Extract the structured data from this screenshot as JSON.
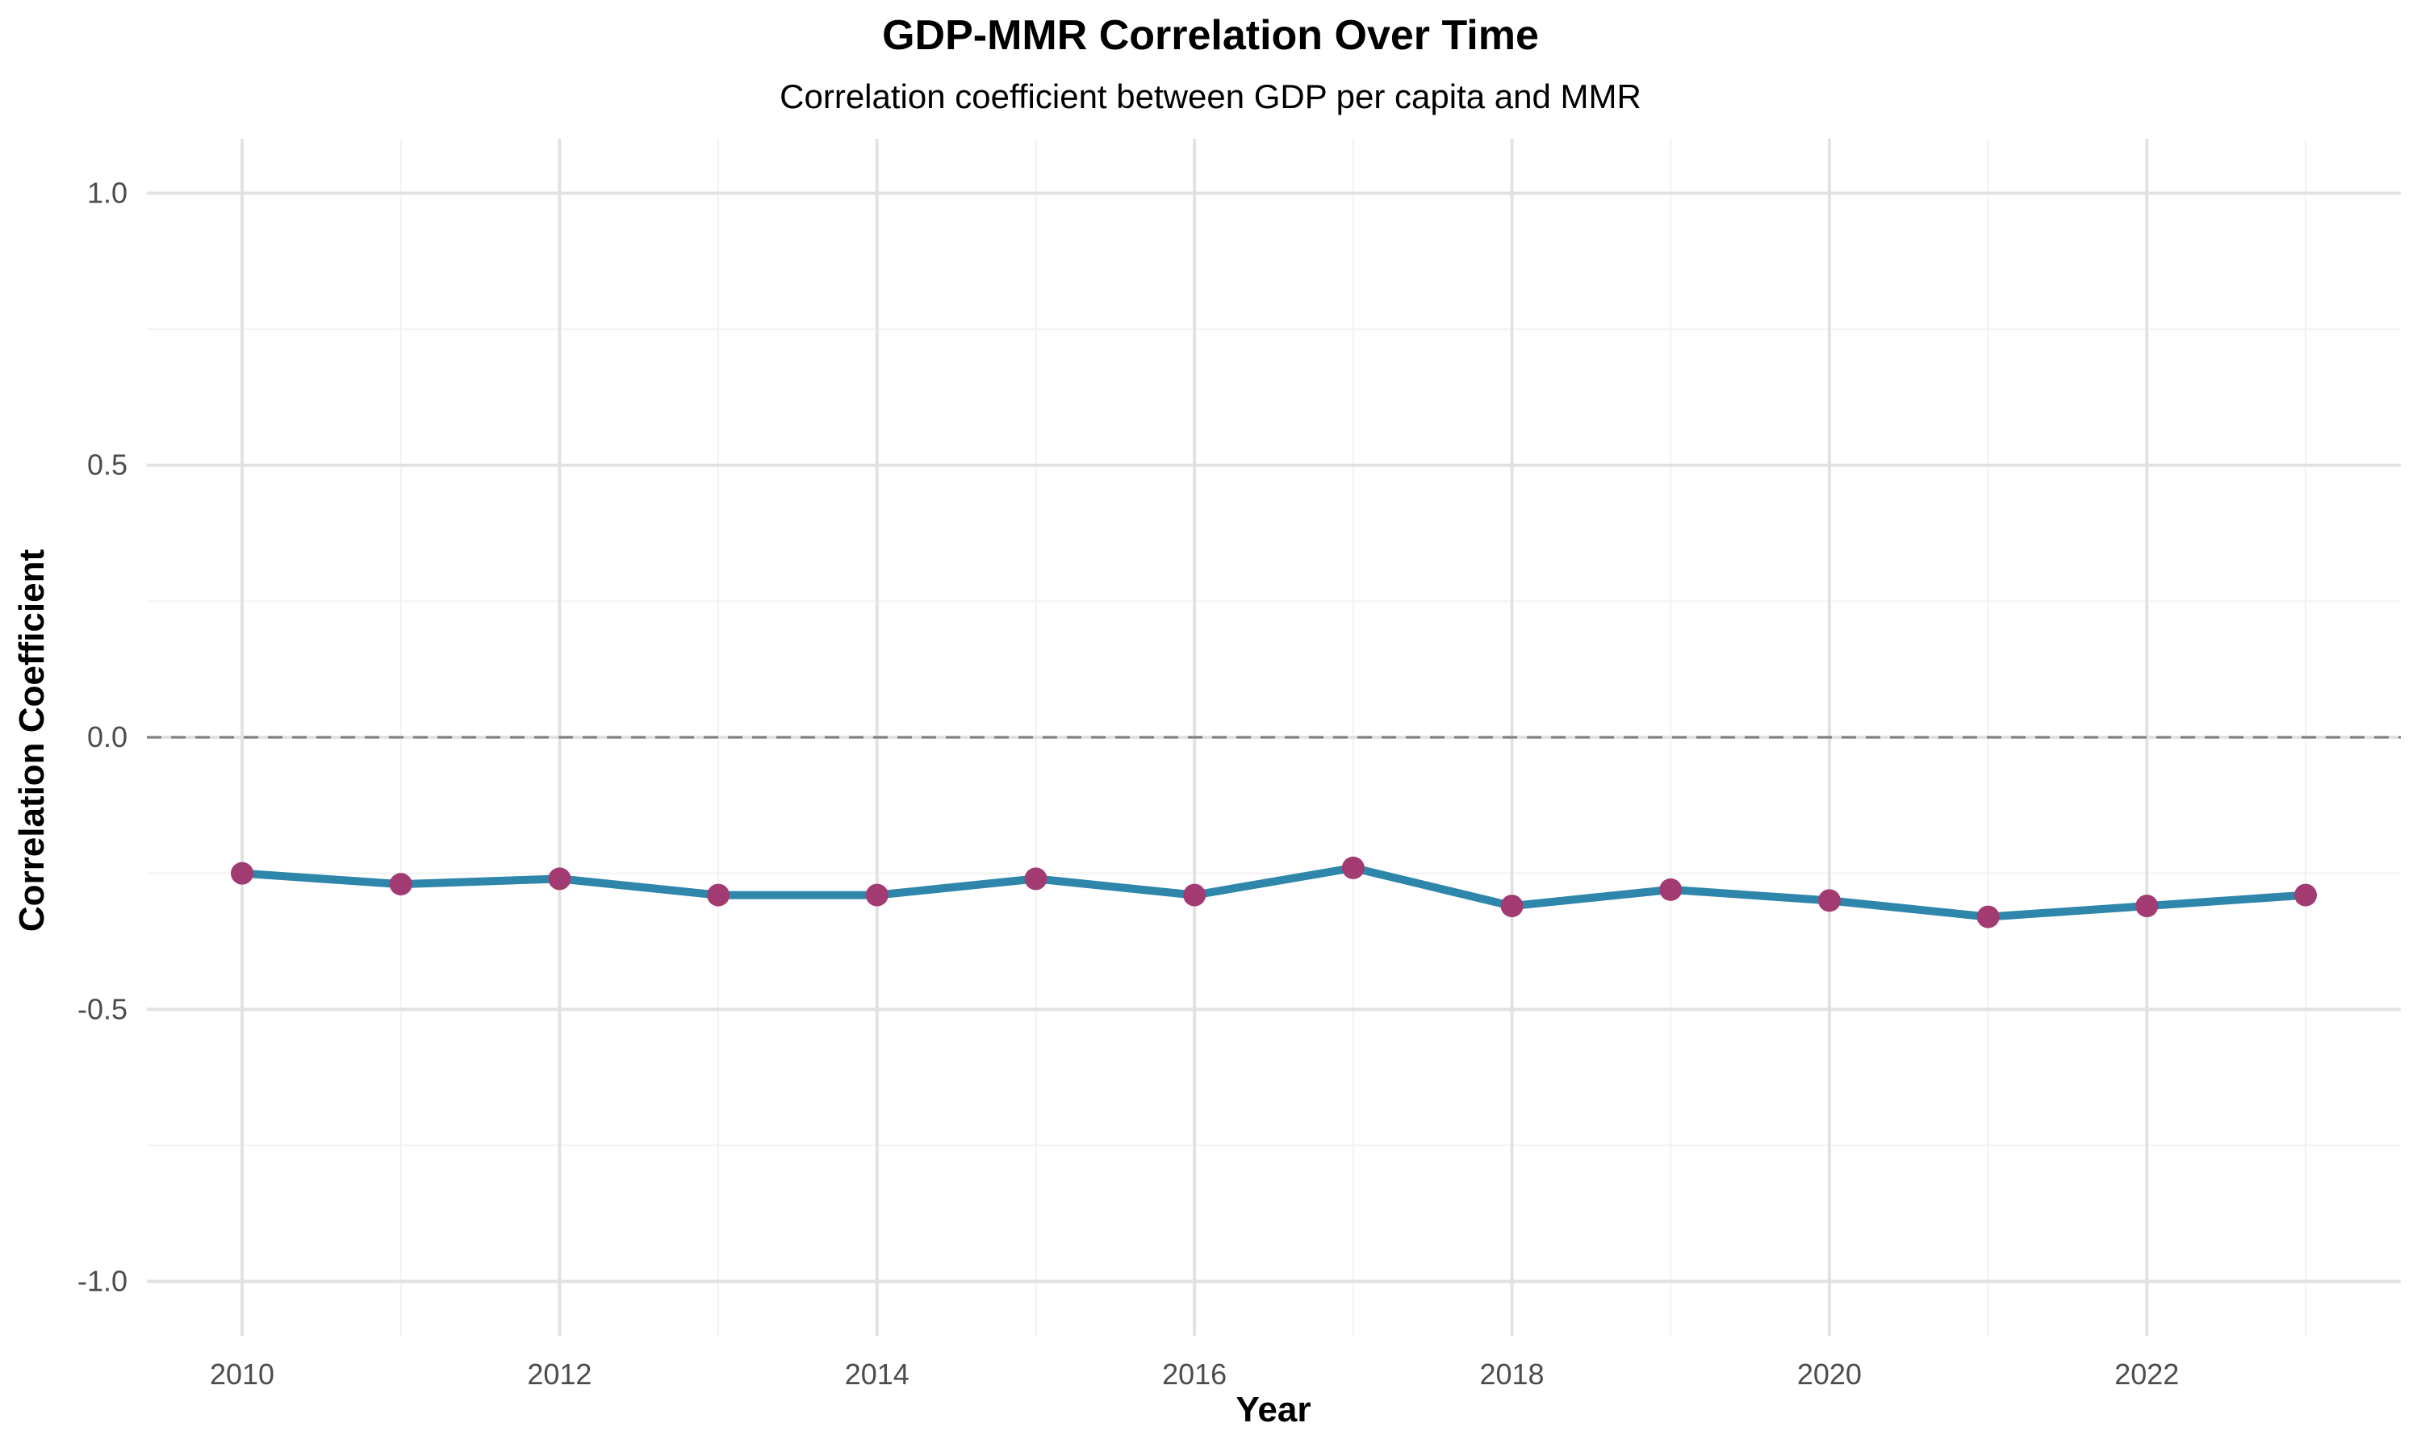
{
  "chart_data": {
    "type": "line",
    "title": "GDP-MMR Correlation Over Time",
    "subtitle": "Correlation coefficient between GDP per capita and MMR",
    "xlabel": "Year",
    "ylabel": "Correlation Coefficient",
    "xlim": [
      2009.4,
      2023.6
    ],
    "ylim": [
      -1.1,
      1.1
    ],
    "x_ticks": [
      2010,
      2012,
      2014,
      2016,
      2018,
      2020,
      2022
    ],
    "x_tick_labels": [
      "2010",
      "2012",
      "2014",
      "2016",
      "2018",
      "2020",
      "2022"
    ],
    "x_minor_ticks": [
      2011,
      2013,
      2015,
      2017,
      2019,
      2021,
      2023
    ],
    "y_ticks": [
      -1.0,
      -0.5,
      0.0,
      0.5,
      1.0
    ],
    "y_tick_labels": [
      "-1.0",
      "-0.5",
      "0.0",
      "0.5",
      "1.0"
    ],
    "y_minor_ticks": [
      -0.75,
      -0.25,
      0.25,
      0.75
    ],
    "grid": true,
    "reference_line": {
      "y": 0,
      "style": "dashed",
      "color": "#7f7f7f"
    },
    "series": [
      {
        "line_color": "#2e86ab",
        "point_color": "#a23b72",
        "x": [
          2010,
          2011,
          2012,
          2013,
          2014,
          2015,
          2016,
          2017,
          2018,
          2019,
          2020,
          2021,
          2022,
          2023
        ],
        "y": [
          -0.25,
          -0.27,
          -0.26,
          -0.29,
          -0.29,
          -0.26,
          -0.29,
          -0.24,
          -0.31,
          -0.28,
          -0.3,
          -0.33,
          -0.31,
          -0.29
        ]
      }
    ]
  }
}
